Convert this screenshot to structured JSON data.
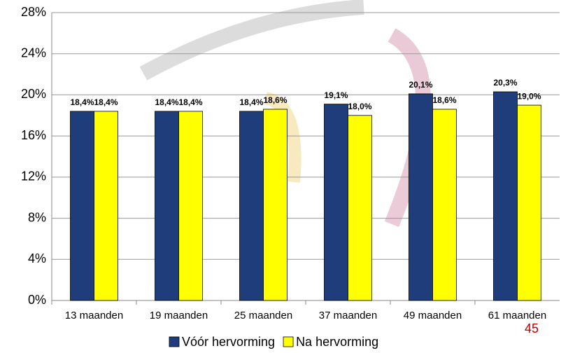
{
  "chart_data": {
    "type": "bar",
    "categories": [
      "13 maanden",
      "19 maanden",
      "25 maanden",
      "37 maanden",
      "49 maanden",
      "61 maanden"
    ],
    "series": [
      {
        "name": "Vóór hervorming",
        "color": "#1f3d7a",
        "values": [
          18.4,
          18.4,
          18.4,
          19.1,
          20.1,
          20.3
        ],
        "value_labels": [
          "18,4%",
          "18,4%",
          "18,4%",
          "19,1%",
          "20,1%",
          "20,3%"
        ]
      },
      {
        "name": "Na hervorming",
        "color": "#ffff00",
        "values": [
          18.4,
          18.4,
          18.6,
          18.0,
          18.6,
          19.0
        ],
        "value_labels": [
          "18,4%",
          "18,4%",
          "18,6%",
          "18,0%",
          "18,6%",
          "19,0%"
        ]
      }
    ],
    "ylim": [
      0,
      28
    ],
    "yticks": [
      {
        "value": 0,
        "label": "0%"
      },
      {
        "value": 4,
        "label": "4%"
      },
      {
        "value": 8,
        "label": "8%"
      },
      {
        "value": 12,
        "label": "12%"
      },
      {
        "value": 16,
        "label": "16%"
      },
      {
        "value": 20,
        "label": "20%"
      },
      {
        "value": 24,
        "label": "24%"
      },
      {
        "value": 28,
        "label": "28%"
      }
    ],
    "grid": true,
    "legend": "bottom",
    "annotations": [
      "45"
    ]
  }
}
